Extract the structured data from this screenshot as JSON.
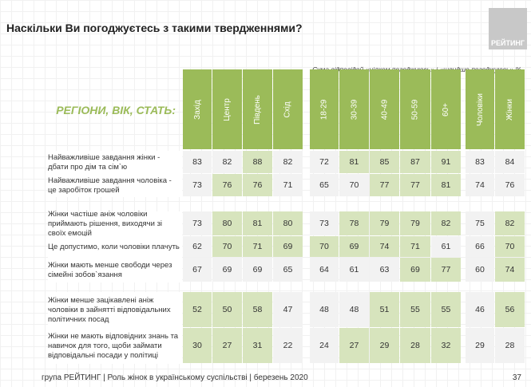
{
  "title": "Наскільки Ви погоджуєтесь з такими твердженнями?",
  "logo": "РЕЙТИНГ",
  "subtitle": "Сума відповідей «цілком погоджуюсь» і «швидше погоджуюсь» %",
  "section_label": "РЕГІОНИ, ВІК, СТАТЬ:",
  "columns": [
    "Захід",
    "Центр",
    "Південь",
    "Схід",
    "18-29",
    "30-39",
    "40-49",
    "50-59",
    "60+",
    "Чоловіки",
    "Жінки"
  ],
  "colors": {
    "header": "#9bbb59",
    "highlight": "#d7e4bd",
    "cell": "#f2f2f2"
  },
  "rows": [
    {
      "label": "Найважливіше завдання жінки - дбати про дім та сім`ю",
      "values": [
        83,
        82,
        88,
        82,
        72,
        81,
        85,
        87,
        91,
        83,
        84
      ],
      "highlight": [
        2,
        5,
        6,
        7,
        8
      ]
    },
    {
      "label": "Найважливіше завдання чоловіка - це заробіток грошей",
      "values": [
        73,
        76,
        76,
        71,
        65,
        70,
        77,
        77,
        81,
        74,
        76
      ],
      "highlight": [
        1,
        2,
        6,
        7,
        8
      ]
    },
    {
      "label": "Жінки частіше аніж чоловіки приймають рішення, виходячи зі своїх емоцій",
      "values": [
        73,
        80,
        81,
        80,
        73,
        78,
        79,
        79,
        82,
        75,
        82
      ],
      "highlight": [
        1,
        2,
        3,
        5,
        6,
        7,
        8,
        10
      ]
    },
    {
      "label": "Це допустимо, коли чоловіки плачуть",
      "values": [
        62,
        70,
        71,
        69,
        70,
        69,
        74,
        71,
        61,
        66,
        70
      ],
      "highlight": [
        1,
        2,
        3,
        4,
        5,
        6,
        7,
        10
      ]
    },
    {
      "label": "Жінки мають менше свободи через сімейні зобов`язання",
      "values": [
        67,
        69,
        69,
        65,
        64,
        61,
        63,
        69,
        77,
        60,
        74
      ],
      "highlight": [
        7,
        8,
        10
      ]
    },
    {
      "label": "Жінки менше зацікавлені аніж чоловіки в зайнятті відповідальних політичних посад",
      "values": [
        52,
        50,
        58,
        47,
        48,
        48,
        51,
        55,
        55,
        46,
        56
      ],
      "highlight": [
        0,
        1,
        2,
        6,
        7,
        8,
        10
      ]
    },
    {
      "label": "Жінки не мають відповідних знань та навичок для того, щоби займати відповідальні посади у політиці",
      "values": [
        30,
        27,
        31,
        22,
        24,
        27,
        29,
        28,
        32,
        29,
        28
      ],
      "highlight": [
        0,
        1,
        2,
        5,
        6,
        7,
        8
      ]
    }
  ],
  "footer": "група РЕЙТИНГ | Роль жінок в українському суспільстві | березень 2020",
  "page_number": "37"
}
